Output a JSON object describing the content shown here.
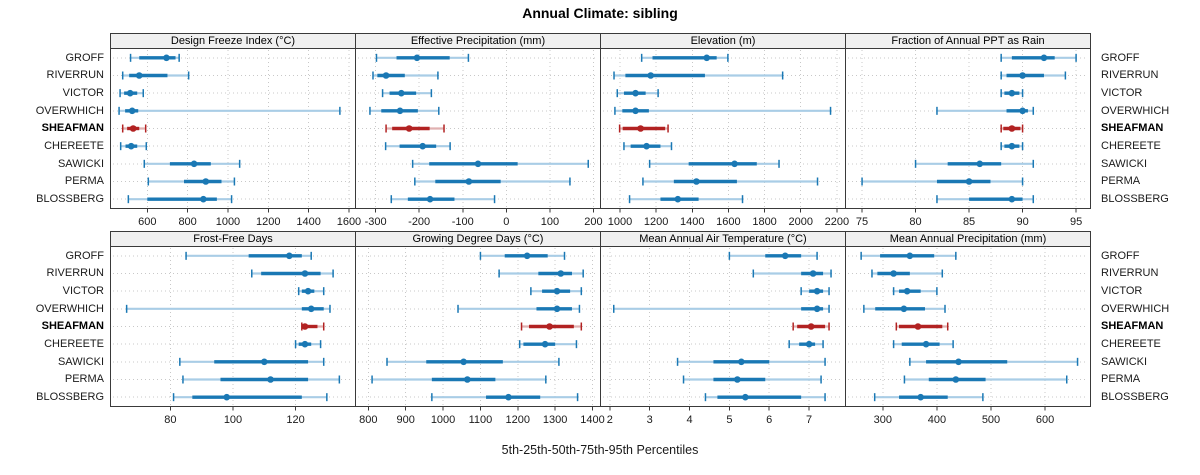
{
  "title": "Annual Climate: sibling",
  "caption": "5th-25th-50th-75th-95th Percentiles",
  "stations": [
    "GROFF",
    "RIVERRUN",
    "VICTOR",
    "OVERWHICH",
    "SHEAFMAN",
    "CHEREETE",
    "SAWICKI",
    "PERMA",
    "BLOSSBERG"
  ],
  "highlight_station": "SHEAFMAN",
  "percentiles": [
    5,
    25,
    50,
    75,
    95
  ],
  "colors": {
    "series": "#1a78b4",
    "series_light": "#a9cde6",
    "highlight": "#b22222",
    "highlight_light": "#e0b1b1",
    "grid": "#c8c8c8",
    "border": "#3a3a3a",
    "strip_bg": "#f0f0f0",
    "text": "#1a1a1a"
  },
  "chart_data": [
    {
      "type": "percentile-dotplot",
      "row": 0,
      "title": "Design Freeze Index (°C)",
      "ticks": [
        600,
        800,
        1000,
        1200,
        1400,
        1600
      ],
      "xlim": [
        420,
        1630
      ],
      "series": [
        {
          "name": "GROFF",
          "values": [
            517,
            560,
            695,
            740,
            758
          ]
        },
        {
          "name": "RIVERRUN",
          "values": [
            478,
            510,
            560,
            700,
            805
          ]
        },
        {
          "name": "VICTOR",
          "values": [
            465,
            485,
            515,
            550,
            580
          ]
        },
        {
          "name": "OVERWHICH",
          "values": [
            460,
            490,
            525,
            555,
            1555
          ]
        },
        {
          "name": "SHEAFMAN",
          "values": [
            478,
            500,
            530,
            560,
            592
          ]
        },
        {
          "name": "CHEREETE",
          "values": [
            468,
            492,
            520,
            550,
            595
          ]
        },
        {
          "name": "SAWICKI",
          "values": [
            585,
            712,
            832,
            915,
            1058
          ]
        },
        {
          "name": "PERMA",
          "values": [
            605,
            782,
            890,
            968,
            1032
          ]
        },
        {
          "name": "BLOSSBERG",
          "values": [
            506,
            600,
            878,
            945,
            1018
          ]
        }
      ]
    },
    {
      "type": "percentile-dotplot",
      "row": 0,
      "title": "Effective Precipitation (mm)",
      "ticks": [
        -300,
        -200,
        -100,
        0,
        100,
        200
      ],
      "xlim": [
        -345,
        215
      ],
      "series": [
        {
          "name": "GROFF",
          "values": [
            -298,
            -252,
            -205,
            -130,
            -87
          ]
        },
        {
          "name": "RIVERRUN",
          "values": [
            -306,
            -296,
            -276,
            -233,
            -157
          ]
        },
        {
          "name": "VICTOR",
          "values": [
            -284,
            -268,
            -241,
            -207,
            -172
          ]
        },
        {
          "name": "OVERWHICH",
          "values": [
            -313,
            -287,
            -244,
            -203,
            -155
          ]
        },
        {
          "name": "SHEAFMAN",
          "values": [
            -276,
            -262,
            -223,
            -176,
            -143
          ]
        },
        {
          "name": "CHEREETE",
          "values": [
            -277,
            -245,
            -192,
            -161,
            -129
          ]
        },
        {
          "name": "SAWICKI",
          "values": [
            -215,
            -177,
            -65,
            26,
            188
          ]
        },
        {
          "name": "PERMA",
          "values": [
            -210,
            -163,
            -86,
            -13,
            146
          ]
        },
        {
          "name": "BLOSSBERG",
          "values": [
            -264,
            -226,
            -175,
            -119,
            -27
          ]
        }
      ]
    },
    {
      "type": "percentile-dotplot",
      "row": 0,
      "title": "Elevation (m)",
      "ticks": [
        1000,
        1200,
        1400,
        1600,
        1800,
        2000,
        2200
      ],
      "xlim": [
        895,
        2245
      ],
      "series": [
        {
          "name": "GROFF",
          "values": [
            1120,
            1180,
            1480,
            1535,
            1597
          ]
        },
        {
          "name": "RIVERRUN",
          "values": [
            967,
            1030,
            1170,
            1470,
            1900
          ]
        },
        {
          "name": "VICTOR",
          "values": [
            985,
            1022,
            1086,
            1142,
            1211
          ]
        },
        {
          "name": "OVERWHICH",
          "values": [
            972,
            1013,
            1086,
            1160,
            2165
          ]
        },
        {
          "name": "SHEAFMAN",
          "values": [
            998,
            1015,
            1114,
            1250,
            1266
          ]
        },
        {
          "name": "CHEREETE",
          "values": [
            1022,
            1059,
            1147,
            1224,
            1285
          ]
        },
        {
          "name": "SAWICKI",
          "values": [
            1164,
            1380,
            1634,
            1757,
            1880
          ]
        },
        {
          "name": "PERMA",
          "values": [
            1127,
            1298,
            1423,
            1647,
            2093
          ]
        },
        {
          "name": "BLOSSBERG",
          "values": [
            1053,
            1224,
            1320,
            1435,
            1678
          ]
        }
      ]
    },
    {
      "type": "percentile-dotplot",
      "row": 0,
      "title": "Fraction of Annual PPT as Rain",
      "ticks": [
        75,
        80,
        85,
        90,
        95
      ],
      "xlim": [
        73.5,
        96.3
      ],
      "series": [
        {
          "name": "GROFF",
          "values": [
            88,
            89,
            92,
            93,
            95
          ]
        },
        {
          "name": "RIVERRUN",
          "values": [
            88,
            88.5,
            90,
            92,
            94
          ]
        },
        {
          "name": "VICTOR",
          "values": [
            88,
            88.3,
            89,
            89.7,
            90
          ]
        },
        {
          "name": "OVERWHICH",
          "values": [
            82,
            88.5,
            90,
            90.5,
            91
          ]
        },
        {
          "name": "SHEAFMAN",
          "values": [
            88,
            88.2,
            89,
            89.8,
            90
          ]
        },
        {
          "name": "CHEREETE",
          "values": [
            88,
            88.3,
            89,
            89.7,
            90
          ]
        },
        {
          "name": "SAWICKI",
          "values": [
            80,
            83,
            86,
            88,
            91
          ]
        },
        {
          "name": "PERMA",
          "values": [
            75,
            82,
            85,
            87,
            90
          ]
        },
        {
          "name": "BLOSSBERG",
          "values": [
            82,
            85,
            89,
            90,
            91
          ]
        }
      ]
    },
    {
      "type": "percentile-dotplot",
      "row": 1,
      "title": "Frost-Free Days",
      "ticks": [
        80,
        100,
        120
      ],
      "xlim": [
        61,
        139
      ],
      "series": [
        {
          "name": "GROFF",
          "values": [
            85,
            105,
            118,
            122,
            125
          ]
        },
        {
          "name": "RIVERRUN",
          "values": [
            106,
            109,
            123,
            128,
            132
          ]
        },
        {
          "name": "VICTOR",
          "values": [
            121,
            122,
            124,
            126,
            129
          ]
        },
        {
          "name": "OVERWHICH",
          "values": [
            66,
            122,
            125,
            129,
            131
          ]
        },
        {
          "name": "SHEAFMAN",
          "values": [
            122,
            122,
            123,
            127,
            129
          ]
        },
        {
          "name": "CHEREETE",
          "values": [
            120,
            121,
            123,
            125,
            128
          ]
        },
        {
          "name": "SAWICKI",
          "values": [
            83,
            94,
            110,
            124,
            129
          ]
        },
        {
          "name": "PERMA",
          "values": [
            84,
            96,
            112,
            124,
            134
          ]
        },
        {
          "name": "BLOSSBERG",
          "values": [
            81,
            87,
            98,
            122,
            130
          ]
        }
      ]
    },
    {
      "type": "percentile-dotplot",
      "row": 1,
      "title": "Growing Degree Days (°C)",
      "ticks": [
        800,
        900,
        1000,
        1100,
        1200,
        1300,
        1400
      ],
      "xlim": [
        767,
        1420
      ],
      "series": [
        {
          "name": "GROFF",
          "values": [
            1100,
            1165,
            1225,
            1280,
            1325
          ]
        },
        {
          "name": "RIVERRUN",
          "values": [
            1150,
            1255,
            1315,
            1345,
            1375
          ]
        },
        {
          "name": "VICTOR",
          "values": [
            1235,
            1265,
            1305,
            1340,
            1370
          ]
        },
        {
          "name": "OVERWHICH",
          "values": [
            1040,
            1250,
            1305,
            1345,
            1365
          ]
        },
        {
          "name": "SHEAFMAN",
          "values": [
            1210,
            1230,
            1285,
            1350,
            1370
          ]
        },
        {
          "name": "CHEREETE",
          "values": [
            1205,
            1215,
            1273,
            1300,
            1357
          ]
        },
        {
          "name": "SAWICKI",
          "values": [
            850,
            955,
            1055,
            1160,
            1310
          ]
        },
        {
          "name": "PERMA",
          "values": [
            810,
            970,
            1065,
            1140,
            1275
          ]
        },
        {
          "name": "BLOSSBERG",
          "values": [
            970,
            1115,
            1175,
            1260,
            1360
          ]
        }
      ]
    },
    {
      "type": "percentile-dotplot",
      "row": 1,
      "title": "Mean Annual Air Temperature (°C)",
      "ticks": [
        2,
        3,
        4,
        5,
        6,
        7
      ],
      "xlim": [
        1.78,
        7.9
      ],
      "series": [
        {
          "name": "GROFF",
          "values": [
            5.0,
            5.9,
            6.4,
            6.8,
            7.2
          ]
        },
        {
          "name": "RIVERRUN",
          "values": [
            5.6,
            6.8,
            7.1,
            7.35,
            7.55
          ]
        },
        {
          "name": "VICTOR",
          "values": [
            6.8,
            7.0,
            7.2,
            7.35,
            7.5
          ]
        },
        {
          "name": "OVERWHICH",
          "values": [
            2.1,
            6.8,
            7.2,
            7.35,
            7.5
          ]
        },
        {
          "name": "SHEAFMAN",
          "values": [
            6.6,
            6.7,
            7.05,
            7.4,
            7.5
          ]
        },
        {
          "name": "CHEREETE",
          "values": [
            6.5,
            6.75,
            7.0,
            7.15,
            7.35
          ]
        },
        {
          "name": "SAWICKI",
          "values": [
            3.7,
            4.6,
            5.3,
            6.0,
            7.4
          ]
        },
        {
          "name": "PERMA",
          "values": [
            3.85,
            4.6,
            5.2,
            5.9,
            7.3
          ]
        },
        {
          "name": "BLOSSBERG",
          "values": [
            4.4,
            4.7,
            5.4,
            6.8,
            7.4
          ]
        }
      ]
    },
    {
      "type": "percentile-dotplot",
      "row": 1,
      "title": "Mean Annual Precipitation (mm)",
      "ticks": [
        300,
        400,
        500,
        600
      ],
      "xlim": [
        232,
        683
      ],
      "series": [
        {
          "name": "GROFF",
          "values": [
            260,
            295,
            350,
            395,
            435
          ]
        },
        {
          "name": "RIVERRUN",
          "values": [
            280,
            290,
            320,
            350,
            410
          ]
        },
        {
          "name": "VICTOR",
          "values": [
            320,
            330,
            345,
            370,
            400
          ]
        },
        {
          "name": "OVERWHICH",
          "values": [
            265,
            286,
            339,
            378,
            415
          ]
        },
        {
          "name": "SHEAFMAN",
          "values": [
            325,
            330,
            365,
            410,
            420
          ]
        },
        {
          "name": "CHEREETE",
          "values": [
            320,
            335,
            380,
            405,
            430
          ]
        },
        {
          "name": "SAWICKI",
          "values": [
            350,
            380,
            440,
            530,
            660
          ]
        },
        {
          "name": "PERMA",
          "values": [
            340,
            385,
            435,
            490,
            640
          ]
        },
        {
          "name": "BLOSSBERG",
          "values": [
            285,
            330,
            370,
            420,
            485
          ]
        }
      ]
    }
  ]
}
